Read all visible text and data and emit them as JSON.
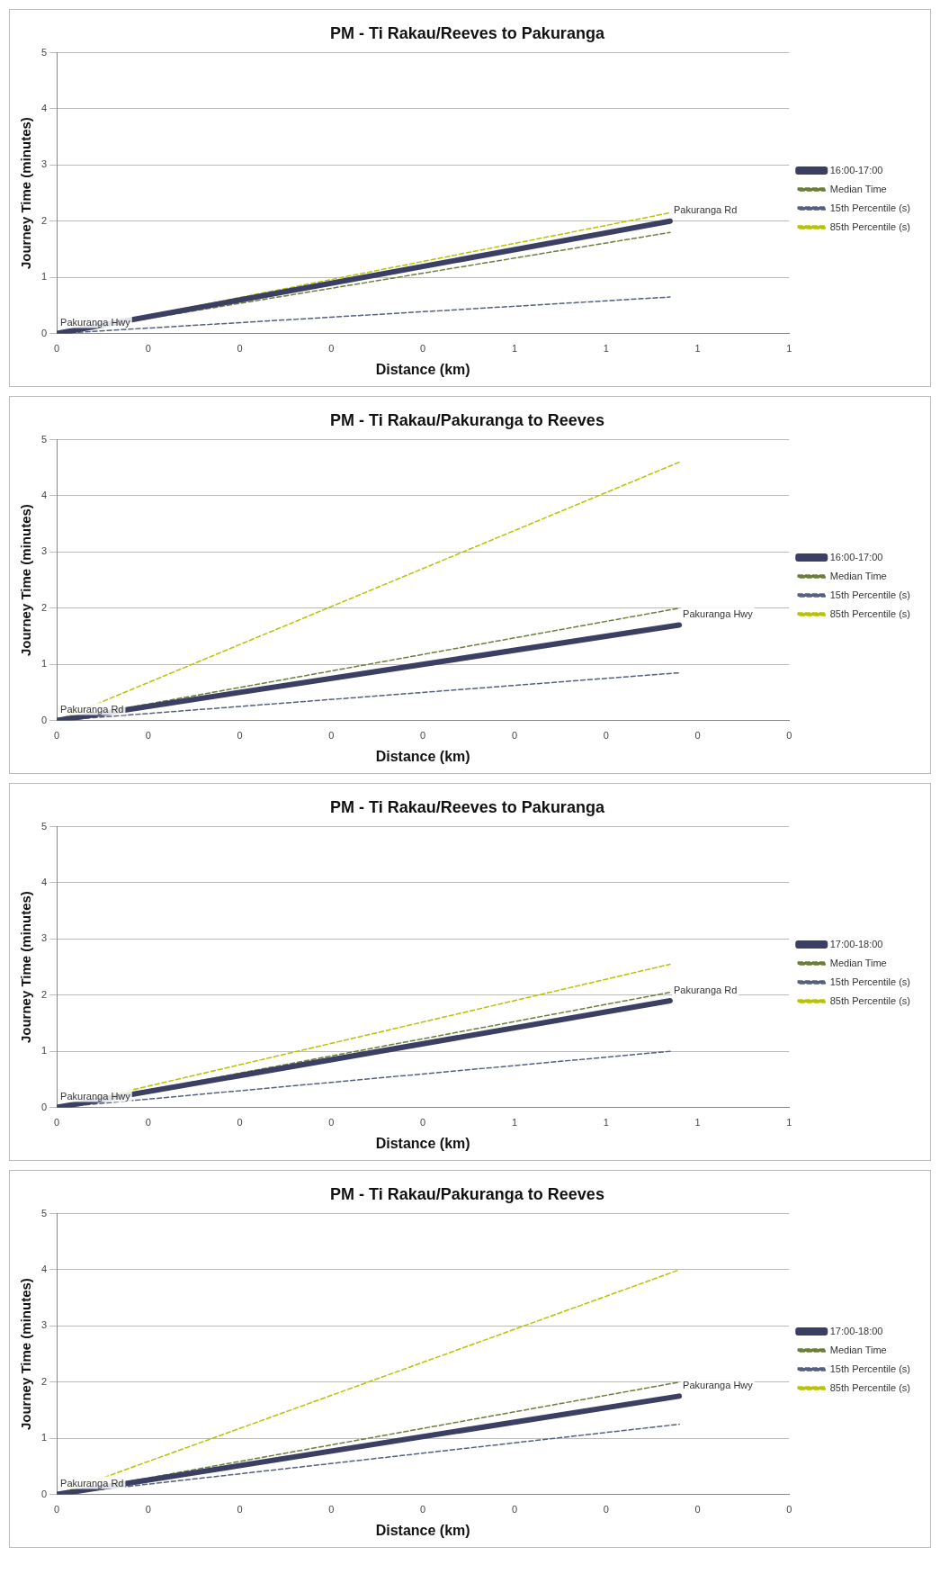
{
  "chart_data": [
    {
      "type": "line",
      "title": "PM - Ti Rakau/Reeves to Pakuranga",
      "xlabel": "Distance (km)",
      "ylabel": "Journey Time (minutes)",
      "xlim": [
        0,
        0.8
      ],
      "xticks": [
        {
          "value": 0,
          "label": "0"
        },
        {
          "value": 0.1,
          "label": "0"
        },
        {
          "value": 0.2,
          "label": "0"
        },
        {
          "value": 0.3,
          "label": "0"
        },
        {
          "value": 0.4,
          "label": "0"
        },
        {
          "value": 0.5,
          "label": "1"
        },
        {
          "value": 0.6,
          "label": "1"
        },
        {
          "value": 0.7,
          "label": "1"
        },
        {
          "value": 0.8,
          "label": "1"
        }
      ],
      "ylim": [
        0,
        5
      ],
      "yticks": [
        0,
        1,
        2,
        3,
        4,
        5
      ],
      "grid": "y",
      "legend": "right",
      "series": [
        {
          "name": "16:00-17:00",
          "color": "#3b3f63",
          "line_style": "solid",
          "x": [
            0,
            0.67
          ],
          "values": [
            0,
            2.0
          ]
        },
        {
          "name": "Median Time",
          "color": "#6b7f3a",
          "line_style": "dashed",
          "x": [
            0,
            0.67
          ],
          "values": [
            0,
            1.8
          ]
        },
        {
          "name": "15th Percentile (s)",
          "color": "#55607f",
          "line_style": "dashed",
          "x": [
            0,
            0.67
          ],
          "values": [
            0,
            0.65
          ]
        },
        {
          "name": "85th Percentile (s)",
          "color": "#b8c400",
          "line_style": "dashed",
          "x": [
            0,
            0.67
          ],
          "values": [
            0,
            2.15
          ]
        }
      ],
      "annotations": [
        {
          "text": "Pakuranga Hwy",
          "x": 0,
          "y": 0
        },
        {
          "text": "Pakuranga Rd",
          "x": 0.67,
          "y": 2.0
        }
      ]
    },
    {
      "type": "line",
      "title": "PM - Ti Rakau/Pakuranga to Reeves",
      "xlabel": "Distance (km)",
      "ylabel": "Journey Time (minutes)",
      "xlim": [
        0,
        0.4
      ],
      "xticks": [
        {
          "value": 0,
          "label": "0"
        },
        {
          "value": 0.05,
          "label": "0"
        },
        {
          "value": 0.1,
          "label": "0"
        },
        {
          "value": 0.15,
          "label": "0"
        },
        {
          "value": 0.2,
          "label": "0"
        },
        {
          "value": 0.25,
          "label": "0"
        },
        {
          "value": 0.3,
          "label": "0"
        },
        {
          "value": 0.35,
          "label": "0"
        },
        {
          "value": 0.4,
          "label": "0"
        }
      ],
      "ylim": [
        0,
        5
      ],
      "yticks": [
        0,
        1,
        2,
        3,
        4,
        5
      ],
      "grid": "y",
      "legend": "right",
      "series": [
        {
          "name": "16:00-17:00",
          "color": "#3b3f63",
          "line_style": "solid",
          "x": [
            0,
            0.34
          ],
          "values": [
            0,
            1.7
          ]
        },
        {
          "name": "Median Time",
          "color": "#6b7f3a",
          "line_style": "dashed",
          "x": [
            0,
            0.34
          ],
          "values": [
            0,
            2.0
          ]
        },
        {
          "name": "15th Percentile (s)",
          "color": "#55607f",
          "line_style": "dashed",
          "x": [
            0,
            0.34
          ],
          "values": [
            0,
            0.85
          ]
        },
        {
          "name": "85th Percentile (s)",
          "color": "#b8c400",
          "line_style": "dashed",
          "x": [
            0,
            0.34
          ],
          "values": [
            0,
            4.6
          ]
        }
      ],
      "annotations": [
        {
          "text": "Pakuranga Rd",
          "x": 0,
          "y": 0
        },
        {
          "text": "Pakuranga Hwy",
          "x": 0.34,
          "y": 1.7
        }
      ]
    },
    {
      "type": "line",
      "title": "PM - Ti Rakau/Reeves to Pakuranga",
      "xlabel": "Distance (km)",
      "ylabel": "Journey Time (minutes)",
      "xlim": [
        0,
        0.8
      ],
      "xticks": [
        {
          "value": 0,
          "label": "0"
        },
        {
          "value": 0.1,
          "label": "0"
        },
        {
          "value": 0.2,
          "label": "0"
        },
        {
          "value": 0.3,
          "label": "0"
        },
        {
          "value": 0.4,
          "label": "0"
        },
        {
          "value": 0.5,
          "label": "1"
        },
        {
          "value": 0.6,
          "label": "1"
        },
        {
          "value": 0.7,
          "label": "1"
        },
        {
          "value": 0.8,
          "label": "1"
        }
      ],
      "ylim": [
        0,
        5
      ],
      "yticks": [
        0,
        1,
        2,
        3,
        4,
        5
      ],
      "grid": "y",
      "legend": "right",
      "series": [
        {
          "name": "17:00-18:00",
          "color": "#3b3f63",
          "line_style": "solid",
          "x": [
            0,
            0.67
          ],
          "values": [
            0,
            1.9
          ]
        },
        {
          "name": "Median Time",
          "color": "#6b7f3a",
          "line_style": "dashed",
          "x": [
            0,
            0.67
          ],
          "values": [
            0,
            2.05
          ]
        },
        {
          "name": "15th Percentile (s)",
          "color": "#55607f",
          "line_style": "dashed",
          "x": [
            0,
            0.67
          ],
          "values": [
            0,
            1.0
          ]
        },
        {
          "name": "85th Percentile (s)",
          "color": "#b8c400",
          "line_style": "dashed",
          "x": [
            0,
            0.67
          ],
          "values": [
            0,
            2.55
          ]
        }
      ],
      "annotations": [
        {
          "text": "Pakuranga Hwy",
          "x": 0,
          "y": 0
        },
        {
          "text": "Pakuranga Rd",
          "x": 0.67,
          "y": 1.9
        }
      ]
    },
    {
      "type": "line",
      "title": "PM - Ti Rakau/Pakuranga to Reeves",
      "xlabel": "Distance (km)",
      "ylabel": "Journey Time (minutes)",
      "xlim": [
        0,
        0.4
      ],
      "xticks": [
        {
          "value": 0,
          "label": "0"
        },
        {
          "value": 0.05,
          "label": "0"
        },
        {
          "value": 0.1,
          "label": "0"
        },
        {
          "value": 0.15,
          "label": "0"
        },
        {
          "value": 0.2,
          "label": "0"
        },
        {
          "value": 0.25,
          "label": "0"
        },
        {
          "value": 0.3,
          "label": "0"
        },
        {
          "value": 0.35,
          "label": "0"
        },
        {
          "value": 0.4,
          "label": "0"
        }
      ],
      "ylim": [
        0,
        5
      ],
      "yticks": [
        0,
        1,
        2,
        3,
        4,
        5
      ],
      "grid": "y",
      "legend": "right",
      "series": [
        {
          "name": "17:00-18:00",
          "color": "#3b3f63",
          "line_style": "solid",
          "x": [
            0,
            0.34
          ],
          "values": [
            0,
            1.75
          ]
        },
        {
          "name": "Median Time",
          "color": "#6b7f3a",
          "line_style": "dashed",
          "x": [
            0,
            0.34
          ],
          "values": [
            0,
            2.0
          ]
        },
        {
          "name": "15th Percentile (s)",
          "color": "#55607f",
          "line_style": "dashed",
          "x": [
            0,
            0.34
          ],
          "values": [
            0,
            1.25
          ]
        },
        {
          "name": "85th Percentile (s)",
          "color": "#b8c400",
          "line_style": "dashed",
          "x": [
            0,
            0.34
          ],
          "values": [
            0,
            4.0
          ]
        }
      ],
      "annotations": [
        {
          "text": "Pakuranga Rd",
          "x": 0,
          "y": 0
        },
        {
          "text": "Pakuranga Hwy",
          "x": 0.34,
          "y": 1.75
        }
      ]
    }
  ]
}
